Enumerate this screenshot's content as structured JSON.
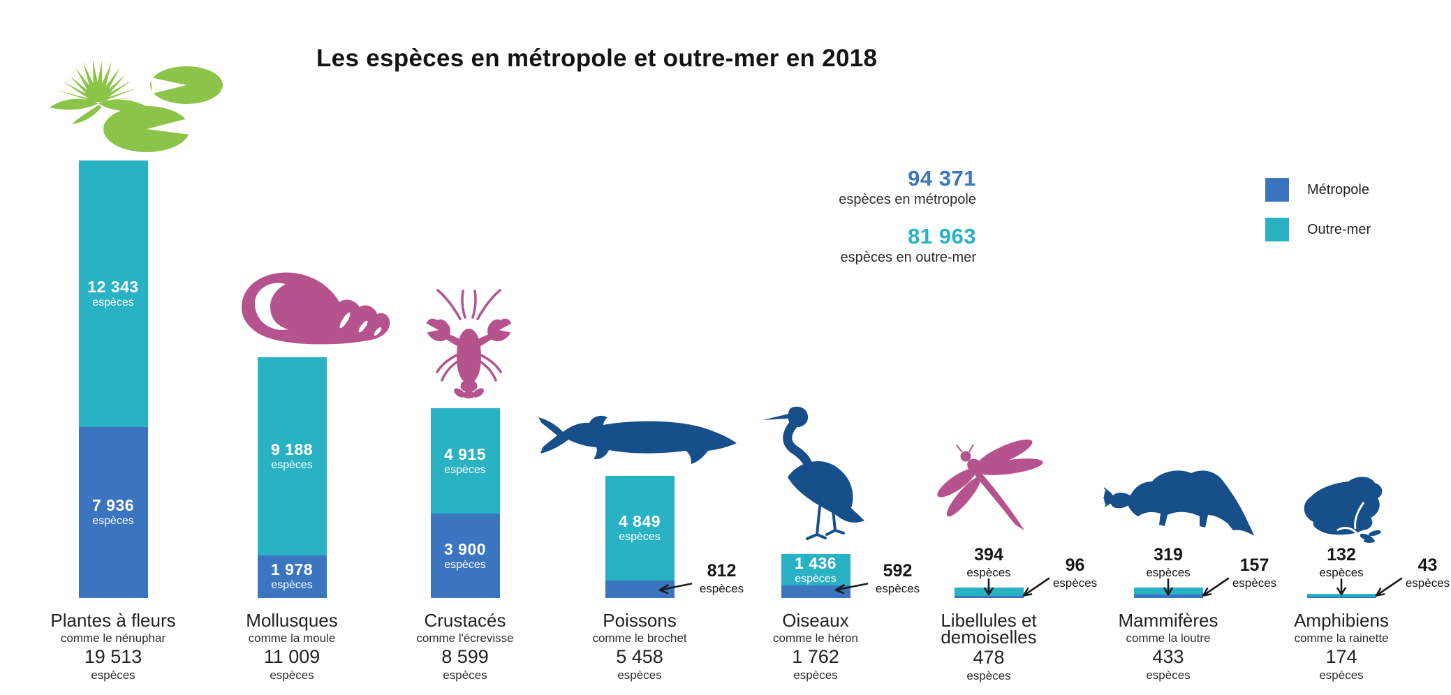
{
  "title": "Les espèces en métropole et outre-mer en 2018",
  "summary": {
    "metropole_value": "94 371",
    "metropole_label": "espèces en métropole",
    "outre_mer_value": "81 963",
    "outre_mer_label": "espèces en outre-mer"
  },
  "legend": {
    "metropole": {
      "label": "Métropole",
      "color": "#3b74bf"
    },
    "outre_mer": {
      "label": "Outre-mer",
      "color": "#29b1c4"
    }
  },
  "colors": {
    "metropole": "#3b74bf",
    "outre_mer": "#29b1c4",
    "navy": "#164f8a",
    "pink": "#b5538f",
    "green": "#8cc449",
    "text_dark": "#1d1d1d"
  },
  "chart_data": {
    "type": "bar",
    "stacked": true,
    "unit": "espèces",
    "title": "Les espèces en métropole et outre-mer en 2018",
    "legend_position": "top-right",
    "series_meta": [
      {
        "name": "Métropole",
        "color": "#3b74bf"
      },
      {
        "name": "Outre-mer",
        "color": "#29b1c4"
      }
    ],
    "totals": {
      "metropole": 94371,
      "outre_mer": 81963
    },
    "categories": [
      {
        "name": "Plantes à fleurs",
        "example": "comme le nénuphar",
        "total": 19513,
        "total_label": "19 513",
        "outre_mer": 12343,
        "outre_mer_label": "12 343",
        "metropole": 7936,
        "metropole_label": "7 936",
        "icon": "water-lily",
        "icon_color": "#8cc449",
        "om_annotation": "inside",
        "met_annotation": "inside"
      },
      {
        "name": "Mollusques",
        "example": "comme la moule",
        "total": 11009,
        "total_label": "11 009",
        "outre_mer": 9188,
        "outre_mer_label": "9 188",
        "metropole": 1978,
        "metropole_label": "1 978",
        "icon": "shell",
        "icon_color": "#b5538f",
        "om_annotation": "inside",
        "met_annotation": "inside"
      },
      {
        "name": "Crustacés",
        "example": "comme l'écrevisse",
        "total": 8599,
        "total_label": "8 599",
        "outre_mer": 4915,
        "outre_mer_label": "4 915",
        "metropole": 3900,
        "metropole_label": "3 900",
        "icon": "crayfish",
        "icon_color": "#b5538f",
        "om_annotation": "inside",
        "met_annotation": "inside"
      },
      {
        "name": "Poissons",
        "example": "comme le brochet",
        "total": 5458,
        "total_label": "5 458",
        "outre_mer": 4849,
        "outre_mer_label": "4 849",
        "metropole": 812,
        "metropole_label": "812",
        "icon": "pike-fish",
        "icon_color": "#164f8a",
        "om_annotation": "inside",
        "met_annotation": "arrow-left"
      },
      {
        "name": "Oiseaux",
        "example": "comme le héron",
        "total": 1762,
        "total_label": "1 762",
        "outre_mer": 1436,
        "outre_mer_label": "1 436",
        "metropole": 592,
        "metropole_label": "592",
        "icon": "heron",
        "icon_color": "#164f8a",
        "om_annotation": "inside",
        "met_annotation": "arrow-left"
      },
      {
        "name": "Libellules et demoiselles",
        "example": "",
        "total": 478,
        "total_label": "478",
        "outre_mer": 394,
        "outre_mer_label": "394",
        "metropole": 96,
        "metropole_label": "96",
        "icon": "dragonfly",
        "icon_color": "#b5538f",
        "om_annotation": "above",
        "met_annotation": "arrow-diagonal"
      },
      {
        "name": "Mammifères",
        "example": "comme la loutre",
        "total": 433,
        "total_label": "433",
        "outre_mer": 319,
        "outre_mer_label": "319",
        "metropole": 157,
        "metropole_label": "157",
        "icon": "otter",
        "icon_color": "#164f8a",
        "om_annotation": "above",
        "met_annotation": "arrow-diagonal"
      },
      {
        "name": "Amphibiens",
        "example": "comme la rainette",
        "total": 174,
        "total_label": "174",
        "outre_mer": 132,
        "outre_mer_label": "132",
        "metropole": 43,
        "metropole_label": "43",
        "icon": "frog",
        "icon_color": "#164f8a",
        "om_annotation": "above",
        "met_annotation": "arrow-diagonal"
      }
    ]
  }
}
